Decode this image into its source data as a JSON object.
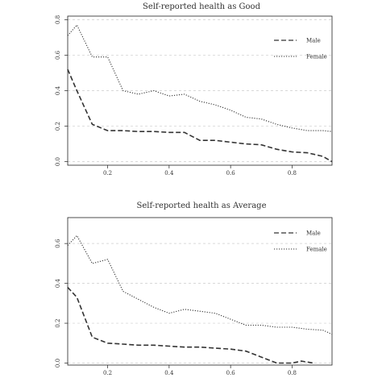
{
  "colors": {
    "line": "#333333",
    "grid": "#cccccc",
    "frame": "#222222",
    "background": "#ffffff"
  },
  "chart_data": [
    {
      "type": "line",
      "title": "Self-reported health as Good",
      "xlabel": "",
      "ylabel": "",
      "xlim": [
        0.07,
        0.93
      ],
      "ylim": [
        -0.02,
        0.82
      ],
      "grid": "horizontal dashed",
      "legend_position": "top-right",
      "xticks": [
        "0.2",
        "0.4",
        "0.6",
        "0.8"
      ],
      "yticks": [
        "0.0",
        "0.2",
        "0.4",
        "0.6",
        "0.8"
      ],
      "series": [
        {
          "name": "Male",
          "style": "dashed",
          "x": [
            0.07,
            0.1,
            0.15,
            0.2,
            0.25,
            0.3,
            0.35,
            0.4,
            0.45,
            0.5,
            0.55,
            0.6,
            0.65,
            0.7,
            0.75,
            0.8,
            0.85,
            0.9,
            0.93
          ],
          "y": [
            0.52,
            0.4,
            0.21,
            0.175,
            0.175,
            0.17,
            0.17,
            0.165,
            0.165,
            0.12,
            0.12,
            0.11,
            0.1,
            0.095,
            0.07,
            0.055,
            0.05,
            0.03,
            0.0
          ]
        },
        {
          "name": "Female",
          "style": "dotted",
          "x": [
            0.07,
            0.1,
            0.15,
            0.2,
            0.25,
            0.3,
            0.35,
            0.4,
            0.45,
            0.5,
            0.55,
            0.6,
            0.65,
            0.7,
            0.75,
            0.8,
            0.85,
            0.9,
            0.93
          ],
          "y": [
            0.71,
            0.77,
            0.59,
            0.59,
            0.4,
            0.38,
            0.4,
            0.37,
            0.38,
            0.34,
            0.32,
            0.29,
            0.25,
            0.24,
            0.21,
            0.19,
            0.175,
            0.175,
            0.17
          ]
        }
      ]
    },
    {
      "type": "line",
      "title": "Self-reported health as Average",
      "xlabel": "",
      "ylabel": "",
      "xlim": [
        0.07,
        0.93
      ],
      "ylim": [
        -0.01,
        0.73
      ],
      "grid": "horizontal dashed",
      "legend_position": "top-right",
      "xticks": [
        "0.2",
        "0.4",
        "0.6",
        "0.8"
      ],
      "yticks": [
        "0.0",
        "0.2",
        "0.4",
        "0.6"
      ],
      "series": [
        {
          "name": "Male",
          "style": "dashed",
          "x": [
            0.07,
            0.1,
            0.15,
            0.2,
            0.25,
            0.3,
            0.35,
            0.4,
            0.45,
            0.5,
            0.55,
            0.6,
            0.65,
            0.7,
            0.75,
            0.8,
            0.83,
            0.87
          ],
          "y": [
            0.38,
            0.33,
            0.13,
            0.1,
            0.095,
            0.09,
            0.09,
            0.085,
            0.08,
            0.08,
            0.075,
            0.07,
            0.06,
            0.03,
            0.0,
            0.0,
            0.01,
            0.0
          ]
        },
        {
          "name": "Female",
          "style": "dotted",
          "x": [
            0.07,
            0.1,
            0.15,
            0.2,
            0.25,
            0.3,
            0.35,
            0.4,
            0.45,
            0.5,
            0.55,
            0.6,
            0.65,
            0.7,
            0.75,
            0.8,
            0.85,
            0.9,
            0.93
          ],
          "y": [
            0.59,
            0.64,
            0.5,
            0.52,
            0.36,
            0.32,
            0.28,
            0.25,
            0.27,
            0.26,
            0.25,
            0.22,
            0.19,
            0.19,
            0.18,
            0.18,
            0.17,
            0.165,
            0.145
          ]
        }
      ]
    }
  ]
}
